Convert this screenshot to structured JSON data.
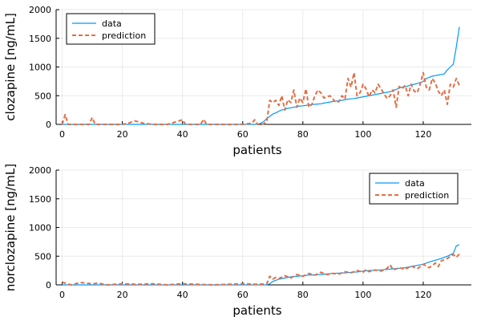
{
  "chart_data": [
    {
      "type": "line",
      "xlabel": "patients",
      "ylabel": "clozapine [ng/mL]",
      "xlim": [
        -2,
        136
      ],
      "ylim": [
        0,
        2000
      ],
      "xticks": [
        0,
        20,
        40,
        60,
        80,
        100,
        120
      ],
      "yticks": [
        0,
        500,
        1000,
        1500,
        2000
      ],
      "xtick_labels": [
        "0",
        "20",
        "40",
        "60",
        "80",
        "100",
        "120"
      ],
      "ytick_labels": [
        "0",
        "500",
        "1000",
        "1500",
        "2000"
      ],
      "grid": true,
      "legend": "top-left",
      "series": [
        {
          "name": "data",
          "color": "#009AFA",
          "style": "solid",
          "x": [
            0,
            65,
            66,
            67,
            68,
            69,
            70,
            71,
            72,
            73,
            74,
            75,
            76,
            77,
            78,
            79,
            80,
            81,
            82,
            83,
            84,
            85,
            86,
            87,
            88,
            89,
            90,
            91,
            92,
            93,
            94,
            95,
            96,
            97,
            98,
            99,
            100,
            101,
            102,
            103,
            104,
            105,
            106,
            107,
            108,
            109,
            110,
            111,
            112,
            113,
            114,
            115,
            116,
            117,
            118,
            119,
            120,
            121,
            122,
            123,
            124,
            125,
            126,
            127,
            128,
            129,
            130,
            131,
            132
          ],
          "y": [
            0,
            0,
            20,
            50,
            100,
            140,
            180,
            200,
            230,
            250,
            265,
            280,
            290,
            300,
            310,
            320,
            325,
            330,
            340,
            345,
            350,
            355,
            360,
            370,
            380,
            390,
            400,
            405,
            410,
            420,
            430,
            440,
            445,
            450,
            460,
            470,
            480,
            490,
            500,
            510,
            520,
            530,
            540,
            550,
            560,
            570,
            590,
            610,
            630,
            650,
            660,
            670,
            690,
            700,
            710,
            730,
            750,
            800,
            820,
            840,
            850,
            860,
            870,
            880,
            950,
            1000,
            1050,
            1350,
            1700
          ]
        },
        {
          "name": "prediction",
          "color": "#E26F46",
          "style": "dashed",
          "x": [
            0,
            1,
            2,
            5,
            9,
            10,
            11,
            15,
            20,
            22,
            24,
            25,
            27,
            30,
            35,
            40,
            41,
            43,
            46,
            47,
            48,
            55,
            60,
            63,
            64,
            65,
            66,
            67,
            68,
            69,
            70,
            71,
            72,
            73,
            74,
            75,
            76,
            77,
            78,
            79,
            80,
            81,
            82,
            83,
            84,
            85,
            86,
            87,
            88,
            89,
            90,
            91,
            92,
            93,
            94,
            95,
            96,
            97,
            98,
            99,
            100,
            101,
            102,
            103,
            104,
            105,
            106,
            107,
            108,
            109,
            110,
            111,
            112,
            113,
            114,
            115,
            116,
            117,
            118,
            119,
            120,
            121,
            122,
            123,
            124,
            125,
            126,
            127,
            128,
            129,
            130,
            131,
            132
          ],
          "y": [
            0,
            170,
            0,
            0,
            0,
            120,
            0,
            0,
            0,
            20,
            60,
            50,
            20,
            0,
            0,
            80,
            0,
            0,
            0,
            90,
            0,
            0,
            0,
            20,
            80,
            0,
            0,
            10,
            50,
            420,
            380,
            420,
            330,
            500,
            250,
            430,
            380,
            600,
            300,
            460,
            380,
            620,
            300,
            350,
            500,
            600,
            550,
            460,
            480,
            500,
            440,
            380,
            400,
            500,
            440,
            800,
            650,
            900,
            500,
            550,
            700,
            620,
            480,
            600,
            550,
            700,
            620,
            530,
            450,
            500,
            600,
            300,
            660,
            620,
            680,
            500,
            700,
            580,
            550,
            700,
            900,
            650,
            600,
            800,
            720,
            580,
            500,
            600,
            350,
            700,
            650,
            800,
            680
          ]
        }
      ]
    },
    {
      "type": "line",
      "xlabel": "patients",
      "ylabel": "norclozapine [ng/mL]",
      "xlim": [
        -2,
        136
      ],
      "ylim": [
        0,
        2000
      ],
      "xticks": [
        0,
        20,
        40,
        60,
        80,
        100,
        120
      ],
      "yticks": [
        0,
        500,
        1000,
        1500,
        2000
      ],
      "xtick_labels": [
        "0",
        "20",
        "40",
        "60",
        "80",
        "100",
        "120"
      ],
      "ytick_labels": [
        "0",
        "500",
        "1000",
        "1500",
        "2000"
      ],
      "grid": true,
      "legend": "top-right",
      "series": [
        {
          "name": "data",
          "color": "#009AFA",
          "style": "solid",
          "x": [
            0,
            68,
            69,
            70,
            72,
            74,
            76,
            78,
            80,
            82,
            84,
            86,
            88,
            90,
            92,
            94,
            96,
            98,
            100,
            102,
            104,
            106,
            108,
            110,
            112,
            114,
            116,
            118,
            120,
            122,
            124,
            126,
            128,
            130,
            131,
            132
          ],
          "y": [
            0,
            0,
            20,
            60,
            100,
            120,
            140,
            150,
            160,
            170,
            175,
            180,
            190,
            200,
            205,
            210,
            220,
            225,
            240,
            250,
            255,
            260,
            270,
            280,
            290,
            300,
            320,
            340,
            360,
            400,
            430,
            460,
            500,
            550,
            680,
            700
          ]
        },
        {
          "name": "prediction",
          "color": "#E26F46",
          "style": "dashed",
          "x": [
            0,
            1,
            3,
            6,
            10,
            12,
            15,
            20,
            25,
            30,
            35,
            40,
            45,
            50,
            55,
            60,
            65,
            68,
            69,
            70,
            71,
            72,
            74,
            76,
            78,
            80,
            82,
            84,
            86,
            88,
            90,
            92,
            94,
            96,
            98,
            100,
            101,
            102,
            104,
            106,
            108,
            109,
            110,
            112,
            114,
            116,
            118,
            120,
            122,
            124,
            125,
            126,
            128,
            130,
            131,
            132
          ],
          "y": [
            50,
            30,
            0,
            40,
            20,
            30,
            0,
            20,
            10,
            20,
            0,
            20,
            10,
            0,
            10,
            20,
            10,
            20,
            150,
            100,
            130,
            110,
            160,
            120,
            180,
            150,
            200,
            170,
            220,
            180,
            200,
            190,
            230,
            210,
            250,
            220,
            270,
            230,
            260,
            240,
            290,
            350,
            260,
            300,
            270,
            330,
            280,
            360,
            300,
            380,
            320,
            420,
            460,
            530,
            480,
            540
          ]
        }
      ]
    }
  ]
}
